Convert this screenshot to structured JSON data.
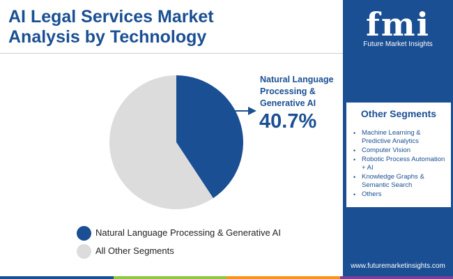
{
  "header": {
    "title_line1": "AI Legal Services Market",
    "title_line2": "Analysis by Technology"
  },
  "brand": {
    "logo_text": "fmi",
    "logo_subtitle": "Future Market Insights",
    "website": "www.futuremarketinsights.com"
  },
  "callout": {
    "label_line1": "Natural Language",
    "label_line2": "Processing &",
    "label_line3": "Generative AI",
    "value": "40.7%"
  },
  "other_segments": {
    "title": "Other Segments",
    "items": [
      "Machine Learning & Predictive Analytics",
      "Computer Vision",
      "Robotic Process Automation + AI",
      "Knowledge Graphs & Semantic Search",
      "Others"
    ]
  },
  "colors": {
    "primary": "#1a4f93",
    "other": "#dcdcdc",
    "bottom_bar": [
      "#1a4f93",
      "#8dc63f",
      "#f7941d",
      "#7b3f98"
    ]
  },
  "chart_data": {
    "type": "pie",
    "title": "AI Legal Services Market Analysis by Technology",
    "series": [
      {
        "name": "Natural Language Processing & Generative AI",
        "value": 40.7,
        "color": "#1a4f93"
      },
      {
        "name": "All Other Segments",
        "value": 59.3,
        "color": "#dcdcdc"
      }
    ],
    "legend": {
      "position": "bottom",
      "entries": [
        "Natural Language Processing & Generative AI",
        "All Other Segments"
      ]
    }
  }
}
